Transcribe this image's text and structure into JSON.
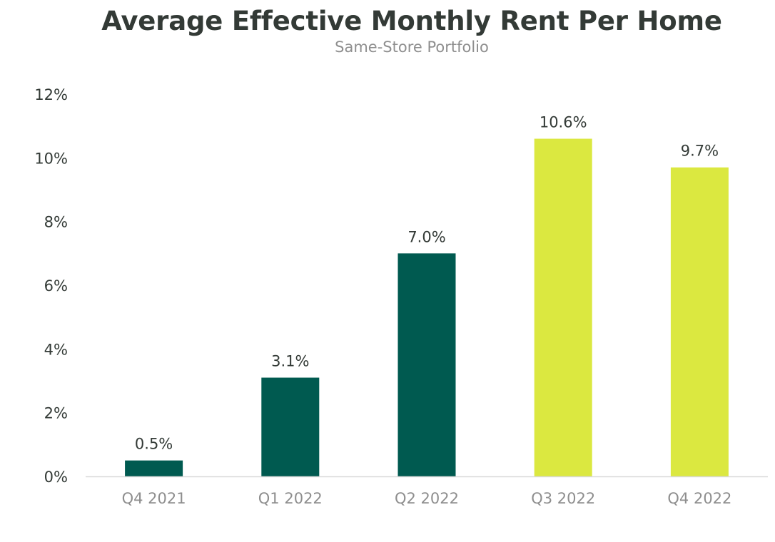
{
  "chart_data": {
    "type": "bar",
    "title": "Average Effective Monthly Rent Per Home",
    "subtitle": "Same-Store Portfolio",
    "categories": [
      "Q4 2021",
      "Q1 2022",
      "Q2 2022",
      "Q3 2022",
      "Q4 2022"
    ],
    "values": [
      0.5,
      3.1,
      7.0,
      10.6,
      9.7
    ],
    "data_labels": [
      "0.5%",
      "3.1%",
      "7.0%",
      "10.6%",
      "9.7%"
    ],
    "bar_colors": [
      "#005a50",
      "#005a50",
      "#005a50",
      "#dbe840",
      "#dbe840"
    ],
    "ylim": [
      0,
      12
    ],
    "yticks": [
      0,
      2,
      4,
      6,
      8,
      10,
      12
    ],
    "ytick_labels": [
      "0%",
      "2%",
      "4%",
      "6%",
      "8%",
      "10%",
      "12%"
    ],
    "xlabel": "",
    "ylabel": "",
    "grid": false,
    "legend": "none"
  }
}
